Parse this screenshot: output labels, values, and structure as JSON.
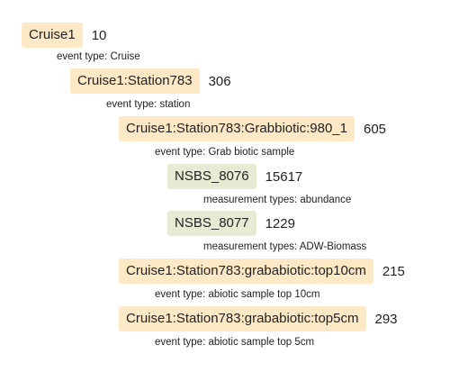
{
  "tree": [
    {
      "label": "Cruise1",
      "count": "10",
      "kind": "event",
      "meta": "event type: Cruise"
    },
    {
      "label": "Cruise1:Station783",
      "count": "306",
      "kind": "event",
      "meta": "event type: station"
    },
    {
      "label": "Cruise1:Station783:Grabbiotic:980_1",
      "count": "605",
      "kind": "event",
      "meta": "event type: Grab biotic sample"
    },
    {
      "label": "NSBS_8076",
      "count": "15617",
      "kind": "measurement",
      "meta": "measurement types: abundance"
    },
    {
      "label": "NSBS_8077",
      "count": "1229",
      "kind": "measurement",
      "meta": "measurement types: ADW-Biomass"
    },
    {
      "label": "Cruise1:Station783:grababiotic:top10cm",
      "count": "215",
      "kind": "event",
      "meta": "event type: abiotic sample top 10cm"
    },
    {
      "label": "Cruise1:Station783:grababiotic:top5cm",
      "count": "293",
      "kind": "event",
      "meta": "event type: abiotic sample top 5cm"
    }
  ]
}
